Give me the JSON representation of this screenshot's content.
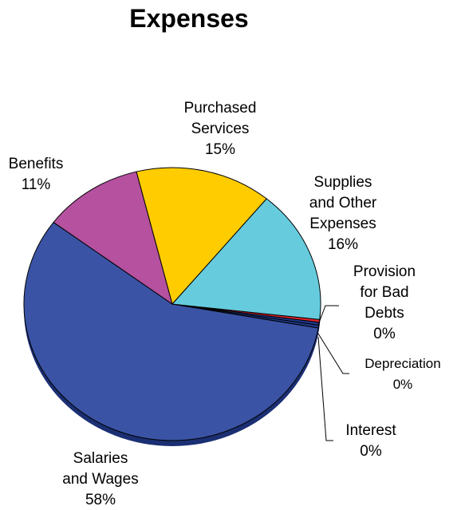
{
  "chart_data": {
    "type": "pie",
    "title": "Expenses",
    "slices": [
      {
        "label": "Salaries and Wages",
        "value": 58,
        "display": "58%",
        "color": "#3A53A4"
      },
      {
        "label": "Benefits",
        "value": 11,
        "display": "11%",
        "color": "#B5519E"
      },
      {
        "label": "Purchased Services",
        "value": 15,
        "display": "15%",
        "color": "#FFCC00"
      },
      {
        "label": "Supplies and Other Expenses",
        "value": 16,
        "display": "16%",
        "color": "#66CCDD"
      },
      {
        "label": "Provision for Bad Debts",
        "value": 0,
        "display": "0%",
        "color": "#E3242B"
      },
      {
        "label": "Depreciation",
        "value": 0,
        "display": "0%",
        "color": "#1F3A8A"
      },
      {
        "label": "Interest",
        "value": 0,
        "display": "0%",
        "color": "#1F3A8A"
      }
    ],
    "labels": {
      "salaries": [
        "Salaries",
        "and Wages",
        "58%"
      ],
      "benefits": [
        "Benefits",
        "11%"
      ],
      "purchased": [
        "Purchased",
        "Services",
        "15%"
      ],
      "supplies": [
        "Supplies",
        "and Other",
        "Expenses",
        "16%"
      ],
      "bad_debts": [
        "Provision",
        "for Bad",
        "Debts",
        "0%"
      ],
      "depreciation": [
        "Depreciation",
        "0%"
      ],
      "interest": [
        "Interest",
        "0%"
      ]
    },
    "legend": "none"
  }
}
